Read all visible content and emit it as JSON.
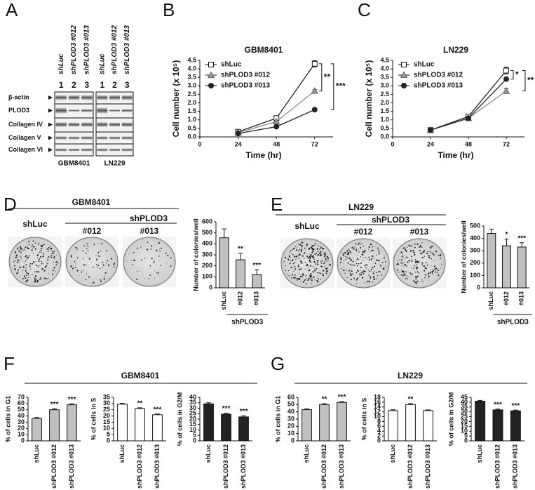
{
  "panels": [
    "A",
    "B",
    "C",
    "D",
    "E",
    "F",
    "G"
  ],
  "blot": {
    "lanes": [
      "shLuc",
      "shPLOD3 #012",
      "shPLOD3 #013"
    ],
    "lane_numbers": [
      "1",
      "2",
      "3"
    ],
    "proteins": [
      "β-actin",
      "PLOD3",
      "Collagen IV",
      "Collagen V",
      "Collagen VI"
    ],
    "cell_lines": [
      "GBM8401",
      "LN229"
    ]
  },
  "colony": [
    {
      "title": "GBM8401",
      "control": "shLuc",
      "group": "shPLOD3",
      "clones": [
        "#012",
        "#013"
      ]
    },
    {
      "title": "LN229",
      "control": "shLuc",
      "group": "shPLOD3",
      "clones": [
        "#012",
        "#013"
      ]
    }
  ],
  "cellcycle_titles": [
    "GBM8401",
    "LN229"
  ],
  "chart_data": [
    {
      "type": "line",
      "title": "GBM8401",
      "xlabel": "Time (hr)",
      "ylabel": "Cell number (x 10⁵)",
      "x": [
        24,
        48,
        72
      ],
      "xlim": [
        0,
        80
      ],
      "xticks": [
        0,
        24,
        48,
        72
      ],
      "ylim": [
        0,
        4.5
      ],
      "yticks": [
        {
          "value": 0,
          "label": "0.0"
        },
        0.5,
        {
          "value": 1,
          "label": "1.0"
        },
        1.5,
        {
          "value": 2,
          "label": "2.0"
        },
        2.5,
        {
          "value": 3,
          "label": "3.0"
        },
        3.5,
        {
          "value": 4,
          "label": "4.0"
        },
        4.5
      ],
      "series": [
        {
          "name": "shLuc",
          "color": "#ffffff",
          "marker": "square",
          "values": [
            0.3,
            1.1,
            4.3
          ],
          "errors": [
            0.05,
            0.08,
            0.18
          ]
        },
        {
          "name": "shPLOD3 #012",
          "color": "#999999",
          "marker": "triangle",
          "values": [
            0.25,
            0.9,
            2.7
          ],
          "errors": [
            0.04,
            0.06,
            0.08
          ]
        },
        {
          "name": "shPLOD3 #013",
          "color": "#222222",
          "marker": "circle",
          "values": [
            0.2,
            0.6,
            1.6
          ],
          "errors": [
            0.03,
            0.05,
            0.05
          ]
        }
      ],
      "annotations": [
        "**",
        "***"
      ]
    },
    {
      "type": "line",
      "title": "LN229",
      "xlabel": "Time (hr)",
      "ylabel": "Cell number (x 10⁵)",
      "x": [
        24,
        48,
        72
      ],
      "xlim": [
        0,
        80
      ],
      "xticks": [
        0,
        24,
        48,
        72
      ],
      "ylim": [
        0,
        4.5
      ],
      "yticks": [
        {
          "value": 0,
          "label": "0.0"
        },
        0.5,
        {
          "value": 1,
          "label": "1.0"
        },
        1.5,
        {
          "value": 2,
          "label": "2.0"
        },
        2.5,
        {
          "value": 3,
          "label": "3.0"
        },
        3.5,
        {
          "value": 4,
          "label": "4.0"
        },
        4.5
      ],
      "series": [
        {
          "name": "shLuc",
          "color": "#ffffff",
          "marker": "square",
          "values": [
            0.4,
            1.2,
            3.9
          ],
          "errors": [
            0.04,
            0.08,
            0.2
          ]
        },
        {
          "name": "shPLOD3 #012",
          "color": "#999999",
          "marker": "triangle",
          "values": [
            0.4,
            1.1,
            2.7
          ],
          "errors": [
            0.04,
            0.06,
            0.15
          ]
        },
        {
          "name": "shPLOD3 #013",
          "color": "#222222",
          "marker": "circle",
          "values": [
            0.4,
            1.1,
            3.4
          ],
          "errors": [
            0.04,
            0.06,
            0.1
          ]
        }
      ],
      "annotations": [
        "*",
        "**"
      ]
    },
    {
      "type": "bar",
      "ylabel": "Number of colonies/well",
      "categories": [
        "shLuc",
        "#012",
        "#013"
      ],
      "group_label": "shPLOD3",
      "values": [
        455,
        255,
        120
      ],
      "errors": [
        80,
        60,
        45
      ],
      "annotations": [
        null,
        "**",
        "***"
      ],
      "color": "#c0c0c0",
      "ylim": [
        0,
        600
      ],
      "yticks": [
        0,
        100,
        200,
        300,
        400,
        500,
        600
      ]
    },
    {
      "type": "bar",
      "ylabel": "Number of colonies/well",
      "categories": [
        "shLuc",
        "#012",
        "#013"
      ],
      "group_label": "shPLOD3",
      "values": [
        440,
        340,
        330
      ],
      "errors": [
        35,
        55,
        35
      ],
      "annotations": [
        null,
        "*",
        "***"
      ],
      "color": "#c0c0c0",
      "ylim": [
        0,
        500
      ],
      "yticks": [
        0,
        100,
        200,
        300,
        400,
        500
      ]
    },
    {
      "type": "bar",
      "ylabel": "% of cells in G1",
      "categories": [
        "shLuc",
        "shPLOD3 #012",
        "shPLOD3 #013"
      ],
      "values": [
        36,
        50,
        58
      ],
      "errors": [
        1.5,
        1.5,
        1.5
      ],
      "annotations": [
        null,
        "***",
        "***"
      ],
      "color": "#c0c0c0",
      "ylim": [
        0,
        70
      ],
      "yticks": [
        0,
        10,
        20,
        30,
        40,
        50,
        60,
        70
      ]
    },
    {
      "type": "bar",
      "ylabel": "% of cells in S",
      "categories": [
        "shLuc",
        "shPLOD3 #012",
        "shPLOD3 #013"
      ],
      "values": [
        29.5,
        26,
        21
      ],
      "errors": [
        0.6,
        0.6,
        0.6
      ],
      "annotations": [
        null,
        "**",
        "***"
      ],
      "color": "#ffffff",
      "ylim": [
        0,
        35
      ],
      "yticks": [
        0,
        5,
        10,
        15,
        20,
        25,
        30,
        35
      ]
    },
    {
      "type": "bar",
      "ylabel": "% of cells in G2/M",
      "categories": [
        "shLuc",
        "shPLOD3 #012",
        "shPLOD3 #013"
      ],
      "values": [
        34,
        24.5,
        22
      ],
      "errors": [
        1,
        1,
        1
      ],
      "annotations": [
        null,
        "***",
        "***"
      ],
      "color": "#222222",
      "ylim": [
        0,
        40
      ],
      "yticks": [
        0,
        5,
        10,
        15,
        20,
        25,
        30,
        35,
        40
      ]
    },
    {
      "type": "bar",
      "ylabel": "% of cells in G1",
      "categories": [
        "shLuc",
        "shPLOD3 #012",
        "shPLOD3 #013"
      ],
      "values": [
        43,
        50,
        53
      ],
      "errors": [
        1,
        1.2,
        1.2
      ],
      "annotations": [
        null,
        "**",
        "***"
      ],
      "color": "#c0c0c0",
      "ylim": [
        0,
        60
      ],
      "yticks": [
        0,
        10,
        20,
        30,
        40,
        50,
        60
      ]
    },
    {
      "type": "bar",
      "ylabel": "% of cells in S",
      "categories": [
        "shLuc",
        "shPLOD3 #012",
        "shPLOD3 #013"
      ],
      "values": [
        12.5,
        15,
        12.5
      ],
      "errors": [
        0.4,
        0.4,
        0.3
      ],
      "annotations": [
        null,
        "**",
        null
      ],
      "color": "#ffffff",
      "ylim": [
        0,
        18
      ],
      "yticks": [
        0,
        2,
        4,
        6,
        8,
        10,
        12,
        14,
        16,
        18
      ]
    },
    {
      "type": "bar",
      "ylabel": "% of cells in G2/M",
      "categories": [
        "shLuc",
        "shPLOD3 #012",
        "shPLOD3 #013"
      ],
      "values": [
        41,
        32,
        31
      ],
      "errors": [
        0.8,
        0.8,
        0.8
      ],
      "annotations": [
        null,
        "***",
        "***"
      ],
      "color": "#222222",
      "ylim": [
        0,
        45
      ],
      "yticks": [
        0,
        5,
        10,
        15,
        20,
        25,
        30,
        35,
        40,
        45
      ]
    }
  ]
}
